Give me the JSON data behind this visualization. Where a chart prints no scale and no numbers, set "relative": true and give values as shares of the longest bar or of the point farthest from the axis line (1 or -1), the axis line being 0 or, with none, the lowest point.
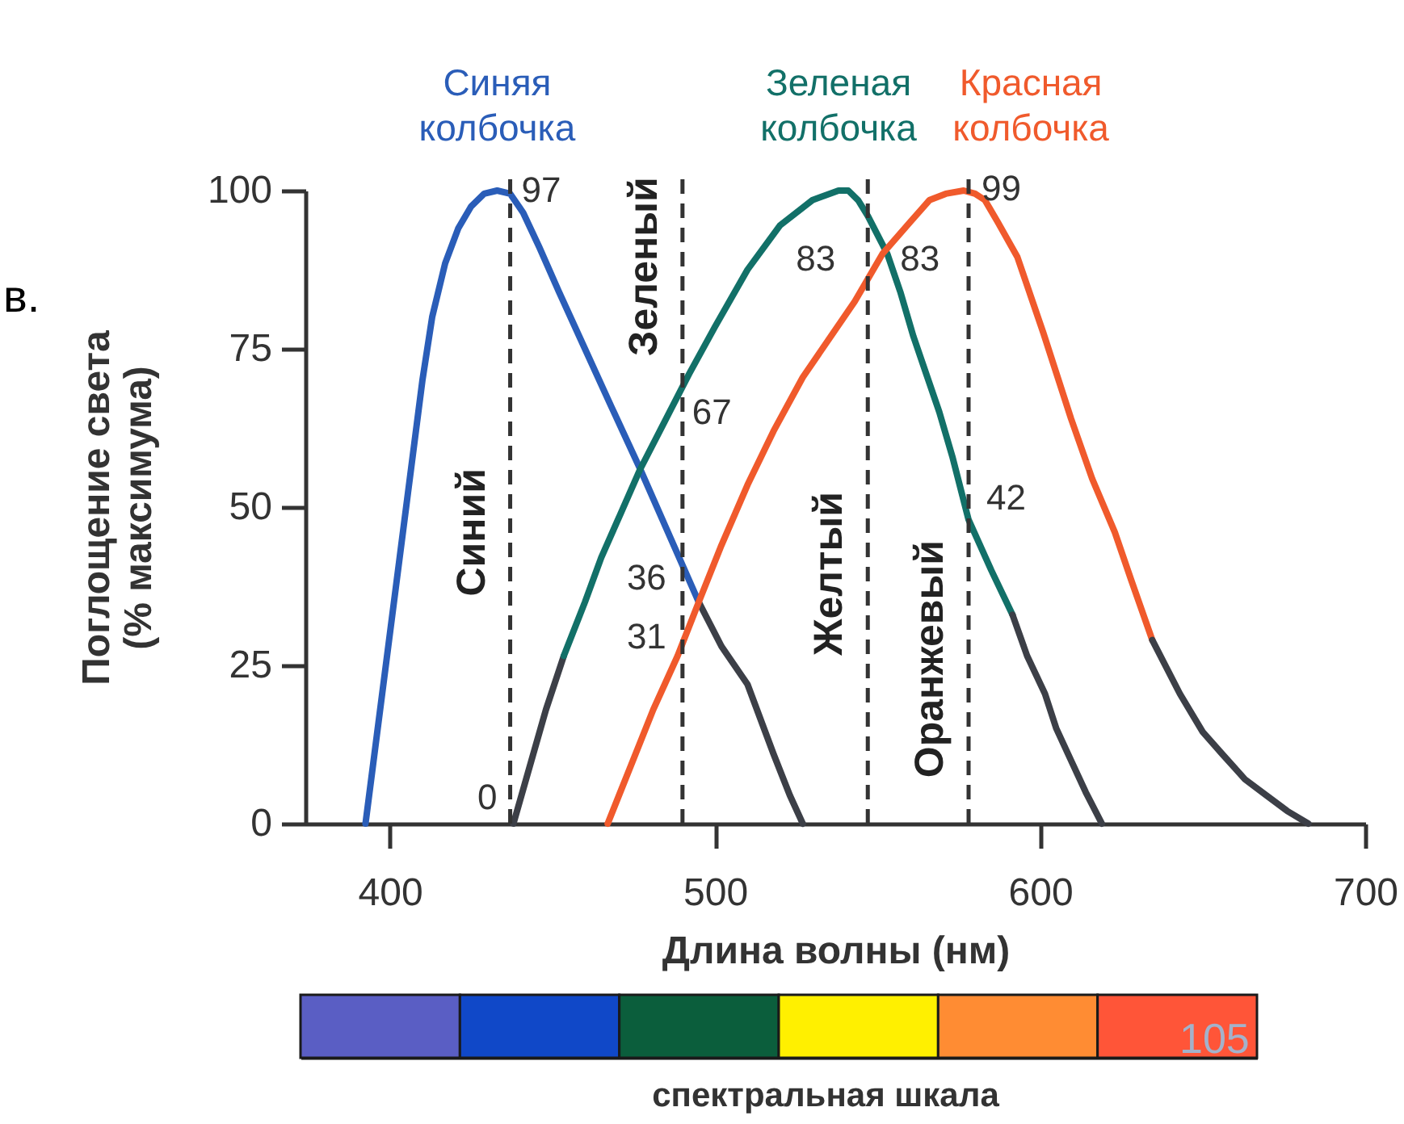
{
  "chart_data": [
    {
      "type": "line",
      "xlabel": "Длина волны (нм)",
      "ylabel": "Поглощение света (% максимума)",
      "xlim": [
        374,
        700
      ],
      "ylim": [
        0,
        100
      ],
      "xticks": [
        400,
        500,
        600,
        700
      ],
      "yticks": [
        0,
        25,
        50,
        75,
        100
      ],
      "series": [
        {
          "name": "Синяя колбочка",
          "color": "#2a5db8",
          "x": [
            392.5,
            396,
            399.5,
            403,
            406.5,
            410,
            413,
            417,
            421,
            425,
            429,
            433,
            437,
            441,
            446,
            452,
            460,
            468,
            477,
            486,
            495
          ],
          "values": [
            0,
            14,
            28,
            42,
            56,
            70,
            80,
            88.5,
            94,
            97.5,
            99.5,
            100,
            99.5,
            96.5,
            91,
            84,
            75,
            66,
            56,
            45.5,
            35
          ]
        },
        {
          "color": "#3c3f47",
          "x": [
            495,
            502,
            510,
            518,
            523,
            527
          ],
          "values": [
            35,
            28,
            22,
            11,
            4.5,
            0
          ]
        },
        {
          "color": "#3c3f47",
          "x": [
            438,
            443,
            448,
            453.5
          ],
          "values": [
            0,
            9,
            18,
            26.5
          ]
        },
        {
          "name": "Зеленая колбочка",
          "color": "#127068",
          "x": [
            453.5,
            460,
            465,
            471,
            477,
            484,
            492,
            500,
            510,
            520,
            530,
            538,
            541,
            544,
            547,
            550,
            553,
            557,
            561,
            565,
            569,
            573,
            578,
            585,
            591.5
          ],
          "values": [
            26.5,
            35,
            42,
            49,
            56,
            63,
            71,
            78.5,
            87.5,
            94.5,
            98.5,
            100,
            100,
            98.5,
            96,
            93,
            90,
            84,
            77,
            71,
            65,
            58,
            48,
            40,
            33
          ]
        },
        {
          "color": "#3c3f47",
          "x": [
            591.5,
            596,
            601.5,
            605,
            609.5,
            614,
            619
          ],
          "values": [
            33,
            26.5,
            20.5,
            15,
            10,
            5,
            0
          ]
        },
        {
          "name": "Красная колбочка",
          "color": "#f05a2c",
          "x": [
            467,
            474,
            481,
            488.5,
            495,
            502,
            510,
            518,
            527,
            535,
            543,
            551.5,
            560,
            566,
            571,
            576.5,
            580,
            583,
            587,
            593,
            601,
            609.5,
            616,
            623,
            628,
            634.5
          ],
          "values": [
            0,
            9,
            18,
            26.5,
            35,
            44,
            53.5,
            62,
            70.5,
            76.5,
            82.5,
            90,
            95,
            98.5,
            99.5,
            100,
            99.5,
            98.5,
            95,
            89.5,
            77.5,
            64,
            54.5,
            46,
            38.5,
            29
          ]
        },
        {
          "color": "#3c3f47",
          "x": [
            634.5,
            643,
            650,
            656,
            663,
            669.5,
            676,
            682.5
          ],
          "values": [
            29,
            20.5,
            14.5,
            11,
            7,
            4.5,
            2,
            0
          ]
        }
      ],
      "ref_lines": [
        {
          "axis": "x",
          "value": 437,
          "label": "Синий",
          "color": "#333333",
          "line_style": "dashed"
        },
        {
          "axis": "x",
          "value": 490,
          "label": "Зеленый",
          "color": "#333333",
          "line_style": "dashed"
        },
        {
          "axis": "x",
          "value": 547,
          "label": "Желтый",
          "color": "#333333",
          "line_style": "dashed"
        },
        {
          "axis": "x",
          "value": 578,
          "label": "Оранжевый",
          "color": "#333333",
          "line_style": "dashed"
        }
      ],
      "annotations": [
        {
          "text": "97",
          "x": 437,
          "y": 97
        },
        {
          "text": "0",
          "x": 437,
          "y": 0
        },
        {
          "text": "67",
          "x": 490,
          "y": 67
        },
        {
          "text": "36",
          "x": 490,
          "y": 36
        },
        {
          "text": "31",
          "x": 490,
          "y": 31
        },
        {
          "text": "83",
          "x": 547,
          "y": 83
        },
        {
          "text": "83",
          "x": 547,
          "y": 83
        },
        {
          "text": "99",
          "x": 578,
          "y": 99
        },
        {
          "text": "42",
          "x": 578,
          "y": 42
        },
        "в."
      ]
    },
    {
      "type": "bar",
      "relative": true,
      "categories": [
        null,
        null,
        null,
        null,
        null,
        null
      ],
      "values": [
        1,
        1,
        1,
        1,
        1,
        1
      ],
      "colors": [
        "#5a5ec4",
        "#1048c8",
        "#0b5e3c",
        "#fff000",
        "#ff8c33",
        "#ff5538"
      ],
      "xlabel": "спектральная шкала",
      "annotations": [
        "105"
      ]
    }
  ]
}
